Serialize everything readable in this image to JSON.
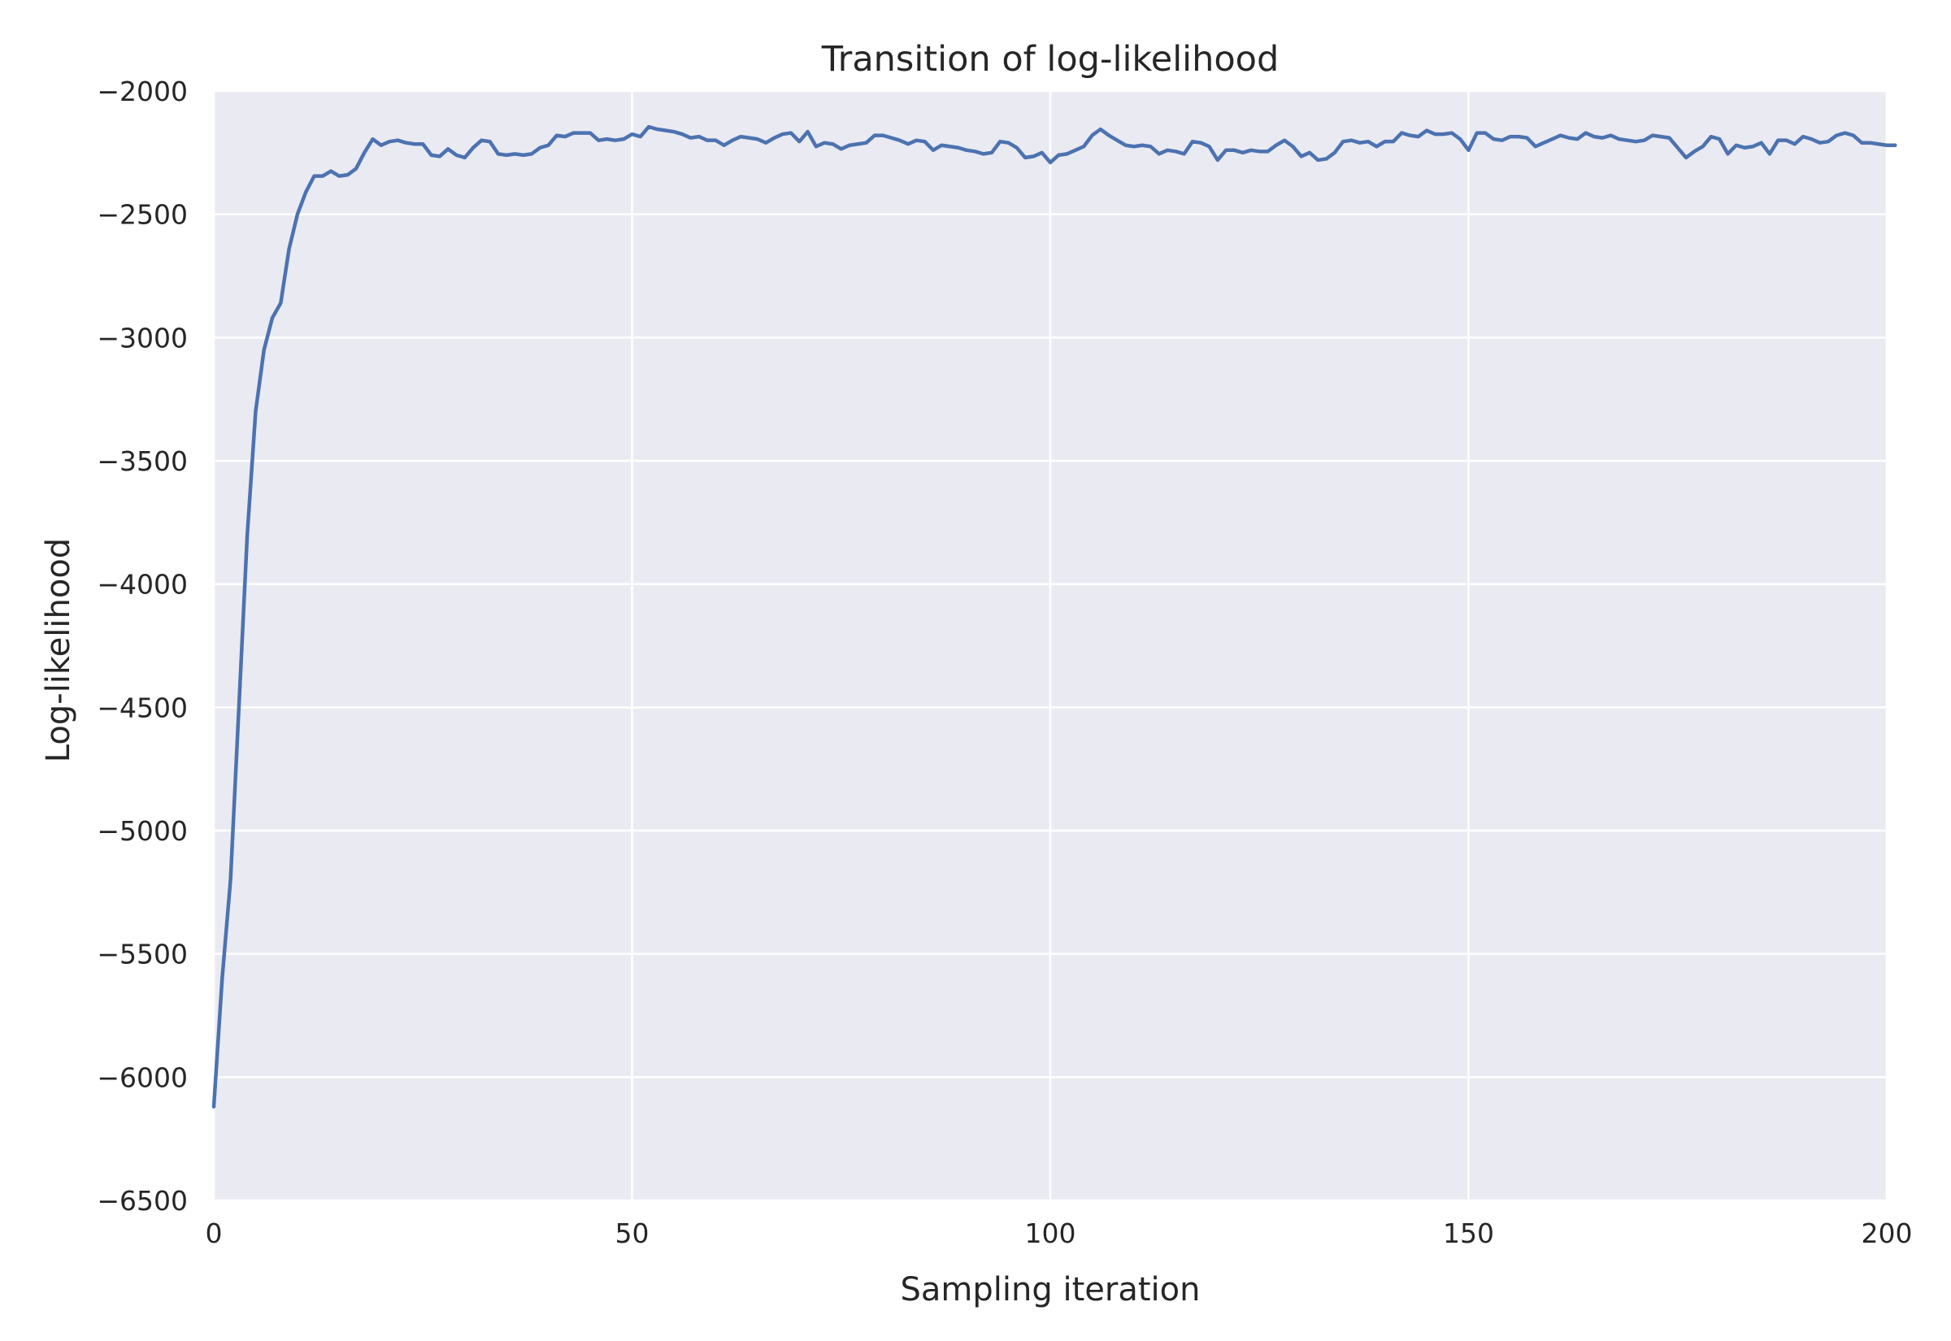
{
  "chart_data": {
    "type": "line",
    "title": "Transition of log-likelihood",
    "xlabel": "Sampling iteration",
    "ylabel": "Log-likelihood",
    "xlim": [
      0,
      200
    ],
    "ylim": [
      -6500,
      -2000
    ],
    "x_ticks": [
      0,
      50,
      100,
      150,
      200
    ],
    "y_ticks": [
      -2000,
      -2500,
      -3000,
      -3500,
      -4000,
      -4500,
      -5000,
      -5500,
      -6000,
      -6500
    ],
    "x_tick_labels": [
      "0",
      "50",
      "100",
      "150",
      "200"
    ],
    "y_tick_labels": [
      "−2000",
      "−2500",
      "−3000",
      "−3500",
      "−4000",
      "−4500",
      "−5000",
      "−5500",
      "−6000",
      "−6500"
    ],
    "grid": true,
    "colors": {
      "line": "#4c72b0",
      "plot_bg": "#eaeaf2",
      "grid": "#ffffff",
      "text": "#262626"
    },
    "series": [
      {
        "x_start": 0,
        "x_step": 1,
        "values": [
          -6120,
          -5600,
          -5200,
          -4500,
          -3800,
          -3300,
          -3050,
          -2920,
          -2860,
          -2640,
          -2500,
          -2410,
          -2345,
          -2345,
          -2325,
          -2345,
          -2340,
          -2315,
          -2250,
          -2195,
          -2220,
          -2205,
          -2200,
          -2210,
          -2215,
          -2215,
          -2260,
          -2265,
          -2235,
          -2260,
          -2270,
          -2230,
          -2200,
          -2205,
          -2255,
          -2260,
          -2255,
          -2260,
          -2255,
          -2230,
          -2220,
          -2180,
          -2185,
          -2170,
          -2170,
          -2170,
          -2200,
          -2195,
          -2200,
          -2195,
          -2175,
          -2185,
          -2145,
          -2155,
          -2160,
          -2165,
          -2175,
          -2190,
          -2185,
          -2200,
          -2200,
          -2220,
          -2200,
          -2185,
          -2190,
          -2195,
          -2210,
          -2190,
          -2175,
          -2170,
          -2205,
          -2165,
          -2225,
          -2210,
          -2215,
          -2235,
          -2220,
          -2215,
          -2210,
          -2180,
          -2180,
          -2190,
          -2200,
          -2215,
          -2200,
          -2205,
          -2240,
          -2220,
          -2225,
          -2230,
          -2240,
          -2245,
          -2255,
          -2250,
          -2205,
          -2210,
          -2230,
          -2270,
          -2265,
          -2250,
          -2290,
          -2260,
          -2255,
          -2240,
          -2225,
          -2180,
          -2155,
          -2180,
          -2200,
          -2220,
          -2225,
          -2220,
          -2225,
          -2255,
          -2240,
          -2245,
          -2255,
          -2205,
          -2210,
          -2225,
          -2280,
          -2240,
          -2240,
          -2250,
          -2240,
          -2245,
          -2245,
          -2220,
          -2200,
          -2225,
          -2265,
          -2250,
          -2280,
          -2275,
          -2250,
          -2205,
          -2200,
          -2210,
          -2205,
          -2225,
          -2205,
          -2205,
          -2170,
          -2180,
          -2185,
          -2160,
          -2175,
          -2175,
          -2170,
          -2195,
          -2240,
          -2170,
          -2170,
          -2195,
          -2200,
          -2185,
          -2185,
          -2190,
          -2225,
          -2210,
          -2195,
          -2180,
          -2190,
          -2195,
          -2170,
          -2185,
          -2190,
          -2180,
          -2195,
          -2200,
          -2205,
          -2200,
          -2180,
          -2185,
          -2190,
          -2230,
          -2270,
          -2245,
          -2225,
          -2185,
          -2195,
          -2255,
          -2220,
          -2230,
          -2225,
          -2210,
          -2255,
          -2200,
          -2200,
          -2215,
          -2185,
          -2195,
          -2210,
          -2205,
          -2180,
          -2170,
          -2180,
          -2210,
          -2210,
          -2215,
          -2220,
          -2220
        ]
      }
    ]
  }
}
